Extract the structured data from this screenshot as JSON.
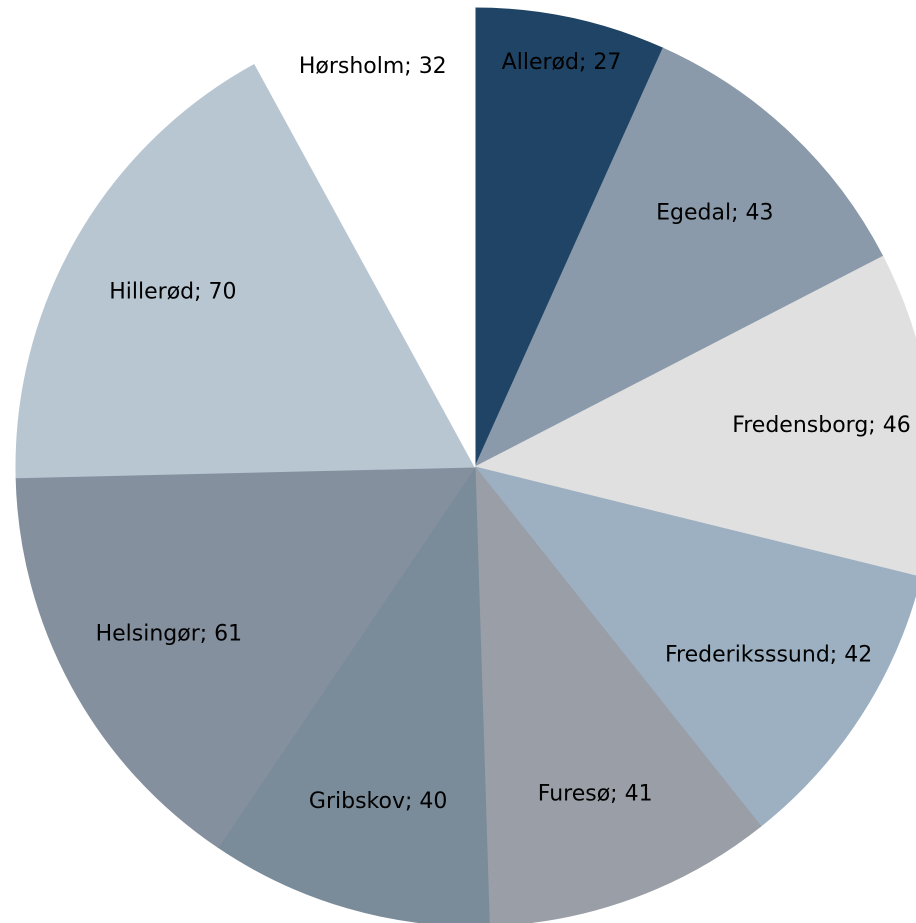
{
  "chart_data": {
    "type": "pie",
    "values": [
      27,
      43,
      46,
      42,
      41,
      40,
      61,
      70,
      32
    ],
    "value_labels": [
      "Allerød; 27",
      "Egedal; 43",
      "Fredensborg; 46",
      "Frederiksssund; 42",
      "Furesø; 41",
      "Gribskov; 40",
      "Helsingør; 61",
      "Hillerød; 70",
      "Hørsholm; 32"
    ],
    "colors": [
      "#1f4465",
      "#8a9aaa",
      "#e0e0e0",
      "#9cb0c2",
      "#9a9ea6",
      "#7a8c9a",
      "#85909f",
      "#b8c6d2",
      "#ffffff"
    ]
  }
}
